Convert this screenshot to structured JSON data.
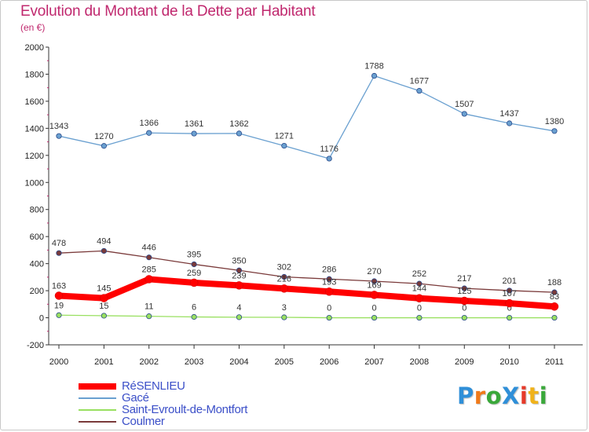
{
  "page": {
    "title": "Evolution du Montant de la Dette par Habitant",
    "subtitle": "(en €)"
  },
  "logo": {
    "text": "ProXiti",
    "letters": [
      "P",
      "r",
      "o",
      "X",
      "i",
      "t",
      "i"
    ]
  },
  "chart_data": {
    "type": "line",
    "categories": [
      "2000",
      "2001",
      "2002",
      "2003",
      "2004",
      "2005",
      "2006",
      "2007",
      "2008",
      "2009",
      "2010",
      "2011"
    ],
    "ylim": [
      -200,
      2000
    ],
    "yticks": [
      "-200",
      "0",
      "200",
      "400",
      "600",
      "800",
      "1000",
      "1200",
      "1400",
      "1600",
      "1800",
      "2000"
    ],
    "grid": false,
    "legend_position": "bottom-left",
    "series": [
      {
        "name": "RéSENLIEU",
        "color": "#ff0000",
        "values": [
          163,
          145,
          285,
          259,
          239,
          216,
          193,
          169,
          144,
          125,
          107,
          83
        ],
        "labels": [
          "163",
          "145",
          "285",
          "259",
          "239",
          "216",
          "193",
          "169",
          "144",
          "125",
          "107",
          "83"
        ]
      },
      {
        "name": "Gacé",
        "color": "#6aa0d0",
        "values": [
          1343,
          1270,
          1366,
          1361,
          1362,
          1271,
          1176,
          1788,
          1677,
          1507,
          1437,
          1380
        ],
        "labels": [
          "1343",
          "1270",
          "1366",
          "1361",
          "1362",
          "1271",
          "1176",
          "1788",
          "1677",
          "1507",
          "1437",
          "1380"
        ]
      },
      {
        "name": "Saint-Evroult-de-Montfort",
        "color": "#99e060",
        "values": [
          19,
          15,
          11,
          6,
          4,
          3,
          0,
          0,
          0,
          0,
          0,
          0
        ],
        "labels": [
          "19",
          "15",
          "11",
          "6",
          "4",
          "3",
          "0",
          "0",
          "0",
          "0",
          "0",
          "0"
        ]
      },
      {
        "name": "Coulmer",
        "color": "#7a3a3a",
        "values": [
          478,
          494,
          446,
          395,
          350,
          302,
          286,
          270,
          252,
          217,
          201,
          188
        ],
        "labels": [
          "478",
          "494",
          "446",
          "395",
          "350",
          "302",
          "286",
          "270",
          "252",
          "217",
          "201",
          "188"
        ]
      }
    ]
  }
}
